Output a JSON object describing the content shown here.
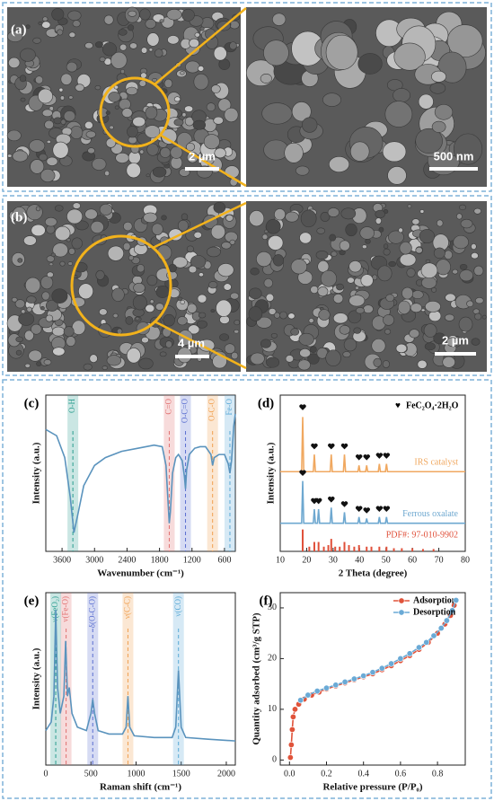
{
  "images": [
    {
      "label": "(a)",
      "scale_bars": [
        "2 µm",
        "500 nm"
      ]
    },
    {
      "label": "(b)",
      "scale_bars": [
        "4 µm",
        "2 µm"
      ]
    }
  ],
  "chart_data": [
    {
      "type": "line",
      "label": "(c)",
      "xlabel": "Wavenumber (cm⁻¹)",
      "ylabel": "Intensity (a.u.)",
      "xlim": [
        3900,
        400
      ],
      "ylim": [
        0,
        100
      ],
      "xticks": [
        3600,
        3000,
        2400,
        1800,
        1200,
        600
      ],
      "bands": [
        {
          "label": "O-H",
          "x": 3400,
          "color": "#2a9d8f"
        },
        {
          "label": "C=O",
          "x": 1620,
          "color": "#e07070"
        },
        {
          "label": "O-C=O",
          "x": 1320,
          "color": "#5b6fd0"
        },
        {
          "label": "O-C-O",
          "x": 820,
          "color": "#f0a050"
        },
        {
          "label": "Fe-O",
          "x": 500,
          "color": "#5aa9d6"
        }
      ],
      "series": [
        {
          "color": "#5a93bd",
          "x": [
            3900,
            3700,
            3550,
            3450,
            3380,
            3300,
            3200,
            3000,
            2800,
            2500,
            2200,
            1900,
            1750,
            1680,
            1640,
            1620,
            1600,
            1560,
            1500,
            1450,
            1380,
            1340,
            1320,
            1300,
            1250,
            1150,
            1050,
            950,
            850,
            820,
            790,
            700,
            600,
            530,
            500,
            470,
            430,
            400
          ],
          "values": [
            78,
            74,
            60,
            35,
            12,
            25,
            42,
            55,
            60,
            64,
            66,
            68,
            67,
            55,
            30,
            18,
            25,
            50,
            60,
            62,
            58,
            48,
            40,
            52,
            62,
            66,
            67,
            67,
            62,
            55,
            60,
            62,
            62,
            56,
            50,
            58,
            80,
            88
          ]
        }
      ]
    },
    {
      "type": "line",
      "label": "(d)",
      "xlabel": "2 Theta (degree)",
      "ylabel": "Intensity (a.u.)",
      "xlim": [
        10,
        80
      ],
      "ylim": [
        0,
        100
      ],
      "xticks": [
        10,
        20,
        30,
        40,
        50,
        60,
        70,
        80
      ],
      "legend": "inline",
      "legend_symbol": "♥",
      "legend_label": "FeC₂O₄·2H₂O",
      "series": [
        {
          "name": "IRS catalyst",
          "color": "#f0a860",
          "x": [
            10,
            18.1,
            18.5,
            18.9,
            22.5,
            22.9,
            23.3,
            28.9,
            29.3,
            29.7,
            33.9,
            34.3,
            34.7,
            39.4,
            39.8,
            40.2,
            42.3,
            42.7,
            43.1,
            47.1,
            47.5,
            47.9,
            49.8,
            50.2,
            50.6,
            80
          ],
          "values": [
            51,
            51,
            86,
            51,
            51,
            62,
            51,
            51,
            62,
            51,
            51,
            62,
            51,
            51,
            55,
            51,
            51,
            55,
            51,
            51,
            56,
            51,
            51,
            56,
            51,
            51
          ]
        },
        {
          "name": "Ferrous oxalate",
          "color": "#6ea8d0",
          "x": [
            10,
            18.1,
            18.5,
            18.9,
            22.5,
            22.9,
            23.3,
            24.1,
            24.5,
            24.9,
            28.9,
            29.3,
            29.7,
            33.9,
            34.3,
            34.7,
            39.4,
            39.8,
            40.2,
            42.3,
            42.7,
            43.1,
            47.1,
            47.5,
            47.9,
            49.8,
            50.2,
            50.6,
            80
          ],
          "values": [
            18,
            18,
            45,
            18,
            18,
            27,
            18,
            18,
            27,
            18,
            18,
            28,
            18,
            18,
            25,
            18,
            18,
            22,
            18,
            18,
            21,
            18,
            18,
            22,
            18,
            18,
            22,
            18,
            18
          ]
        },
        {
          "name": "PDF#: 97-010-9902",
          "color": "#e0503a",
          "style": "stick",
          "x": [
            18.5,
            21.0,
            22.9,
            24.5,
            26.5,
            28.2,
            29.3,
            30.8,
            32.5,
            34.3,
            36.0,
            38.0,
            39.8,
            42.7,
            44.5,
            47.5,
            50.2,
            53.0,
            56.0,
            60.0,
            64.0,
            68.0
          ],
          "values": [
            14,
            3,
            6,
            6,
            3,
            4,
            8,
            3,
            3,
            6,
            4,
            3,
            4,
            3,
            3,
            3,
            3,
            2,
            2,
            2,
            1.5,
            1.5
          ]
        }
      ],
      "peak_marks": {
        "x": [
          18.5,
          22.9,
          29.3,
          34.3,
          39.8,
          42.7,
          47.5,
          50.2,
          18.5,
          22.9,
          24.5,
          29.3,
          34.3,
          39.8,
          42.7,
          47.5,
          50.2
        ],
        "y": [
          92,
          67,
          67,
          67,
          60,
          60,
          61,
          61,
          50,
          32,
          32,
          33,
          30,
          27,
          26,
          27,
          27
        ]
      }
    },
    {
      "type": "line",
      "label": "(e)",
      "xlabel": "Raman shift (cm⁻¹)",
      "ylabel": "Intensity (a.u.)",
      "xlim": [
        0,
        2100
      ],
      "ylim": [
        0,
        100
      ],
      "xticks": [
        0,
        500,
        1000,
        1500,
        2000
      ],
      "bands": [
        {
          "label": "ν(FeO₂)",
          "x": 110,
          "color": "#2a9d8f"
        },
        {
          "label": "ν(Fe-O)",
          "x": 225,
          "color": "#e07070"
        },
        {
          "label": "δ(O-C-O)",
          "x": 520,
          "color": "#5b6fd0"
        },
        {
          "label": "ν(C-C)",
          "x": 910,
          "color": "#f0a050"
        },
        {
          "label": "ν(CO)",
          "x": 1470,
          "color": "#5aa9d6"
        }
      ],
      "series": [
        {
          "color": "#5a93bd",
          "x": [
            0,
            60,
            90,
            110,
            130,
            160,
            200,
            220,
            240,
            260,
            290,
            350,
            450,
            500,
            520,
            540,
            580,
            700,
            850,
            890,
            910,
            930,
            980,
            1200,
            1400,
            1440,
            1470,
            1500,
            1550,
            1800,
            2100
          ],
          "values": [
            20,
            25,
            40,
            90,
            45,
            30,
            40,
            72,
            40,
            45,
            30,
            22,
            20,
            30,
            38,
            30,
            20,
            18,
            18,
            22,
            40,
            22,
            17,
            16,
            16,
            22,
            55,
            22,
            16,
            15,
            14
          ]
        }
      ]
    },
    {
      "type": "line",
      "label": "(f)",
      "xlabel": "Relative pressure (P/P₀)",
      "ylabel": "Quantity adsorbed (cm³/g STP)",
      "xlim": [
        -0.05,
        0.95
      ],
      "ylim": [
        -1,
        33
      ],
      "xticks": [
        {
          "value": 0,
          "label": "0.0"
        },
        0.2,
        0.4,
        0.6,
        0.8
      ],
      "yticks": [
        0,
        10,
        20,
        30
      ],
      "legend": "upper right",
      "series": [
        {
          "name": "Adsorption",
          "color": "#e0533a",
          "markers": true,
          "x": [
            0.005,
            0.01,
            0.015,
            0.02,
            0.03,
            0.05,
            0.08,
            0.12,
            0.16,
            0.2,
            0.25,
            0.3,
            0.35,
            0.4,
            0.45,
            0.5,
            0.55,
            0.6,
            0.65,
            0.7,
            0.75,
            0.8,
            0.84,
            0.87,
            0.89,
            0.9
          ],
          "values": [
            0.5,
            3,
            6,
            8.5,
            10,
            11,
            12,
            12.8,
            13.4,
            14,
            14.6,
            15.2,
            15.8,
            16.4,
            17,
            17.8,
            18.6,
            19.6,
            20.6,
            21.8,
            23.2,
            25,
            26.8,
            28.5,
            30.5,
            31.5
          ]
        },
        {
          "name": "Desorption",
          "color": "#6aaad6",
          "markers": true,
          "x": [
            0.9,
            0.88,
            0.85,
            0.82,
            0.78,
            0.74,
            0.7,
            0.65,
            0.6,
            0.55,
            0.5,
            0.45,
            0.4,
            0.35,
            0.3,
            0.25,
            0.2,
            0.15,
            0.1,
            0.06
          ],
          "values": [
            31.5,
            29.5,
            27.5,
            26,
            24.5,
            23.2,
            22.2,
            21,
            20,
            19,
            18.1,
            17.3,
            16.6,
            16,
            15.4,
            14.8,
            14.2,
            13.6,
            12.8,
            11.8
          ]
        }
      ]
    }
  ]
}
